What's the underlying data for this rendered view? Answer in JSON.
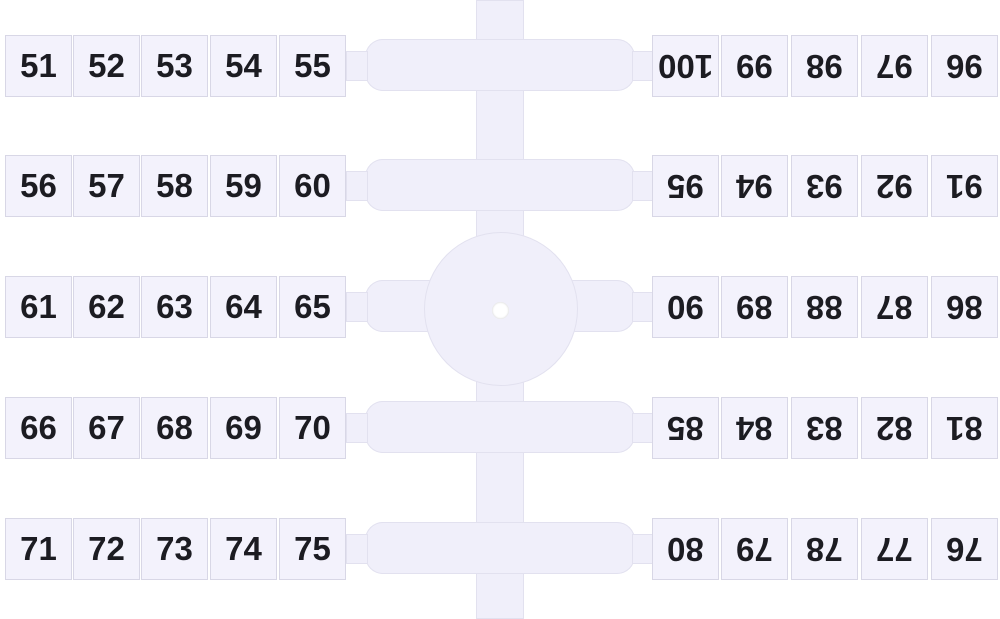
{
  "colors": {
    "plastic": "#f0effa",
    "text": "#1c1c22",
    "background": "#ffffff"
  },
  "rows": [
    {
      "left": [
        "51",
        "52",
        "53",
        "54",
        "55"
      ],
      "right": [
        "100",
        "99",
        "98",
        "97",
        "96"
      ]
    },
    {
      "left": [
        "56",
        "57",
        "58",
        "59",
        "60"
      ],
      "right": [
        "95",
        "94",
        "93",
        "92",
        "91"
      ]
    },
    {
      "left": [
        "61",
        "62",
        "63",
        "64",
        "65"
      ],
      "right": [
        "90",
        "89",
        "88",
        "87",
        "86"
      ]
    },
    {
      "left": [
        "66",
        "67",
        "68",
        "69",
        "70"
      ],
      "right": [
        "85",
        "84",
        "83",
        "82",
        "81"
      ]
    },
    {
      "left": [
        "71",
        "72",
        "73",
        "74",
        "75"
      ],
      "right": [
        "80",
        "79",
        "78",
        "77",
        "76"
      ]
    }
  ]
}
